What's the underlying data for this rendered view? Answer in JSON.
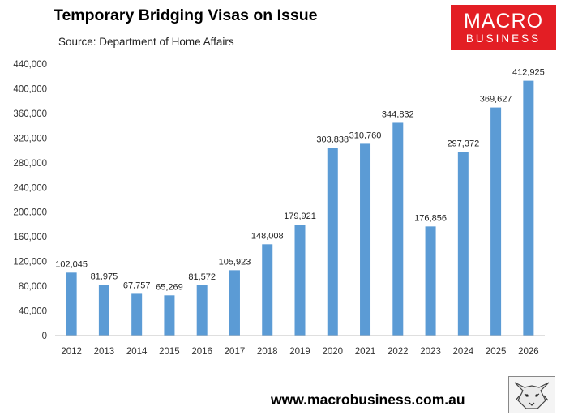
{
  "header": {
    "title": "Temporary Bridging Visas on Issue",
    "subtitle": "Source: Department of Home Affairs"
  },
  "logo": {
    "line1": "MACRO",
    "line2": "BUSINESS",
    "color": "#e31e24"
  },
  "footer": {
    "url": "www.macrobusiness.com.au",
    "mascot_icon": "fox-sketch-icon"
  },
  "chart_data": {
    "type": "bar",
    "title": "Temporary Bridging Visas on Issue",
    "subtitle": "Source: Department of Home Affairs",
    "xlabel": "",
    "ylabel": "",
    "categories": [
      "2012",
      "2013",
      "2014",
      "2015",
      "2016",
      "2017",
      "2018",
      "2019",
      "2020",
      "2021",
      "2022",
      "2023",
      "2024",
      "2025",
      "2026"
    ],
    "values": [
      102045,
      81975,
      67757,
      65269,
      81572,
      105923,
      148008,
      179921,
      303838,
      310760,
      344832,
      176856,
      297372,
      369627,
      412925
    ],
    "value_labels": [
      "102,045",
      "81,975",
      "67,757",
      "65,269",
      "81,572",
      "105,923",
      "148,008",
      "179,921",
      "303,838",
      "310,760",
      "344,832",
      "176,856",
      "297,372",
      "369,627",
      "412,925"
    ],
    "ylim": [
      0,
      440000
    ],
    "yticks": [
      0,
      40000,
      80000,
      120000,
      160000,
      200000,
      240000,
      280000,
      320000,
      360000,
      400000,
      440000
    ],
    "ytick_labels": [
      "0",
      "40,000",
      "80,000",
      "120,000",
      "160,000",
      "200,000",
      "240,000",
      "280,000",
      "320,000",
      "360,000",
      "400,000",
      "440,000"
    ],
    "grid": false,
    "legend": "none",
    "bar_color": "#5b9bd5"
  }
}
